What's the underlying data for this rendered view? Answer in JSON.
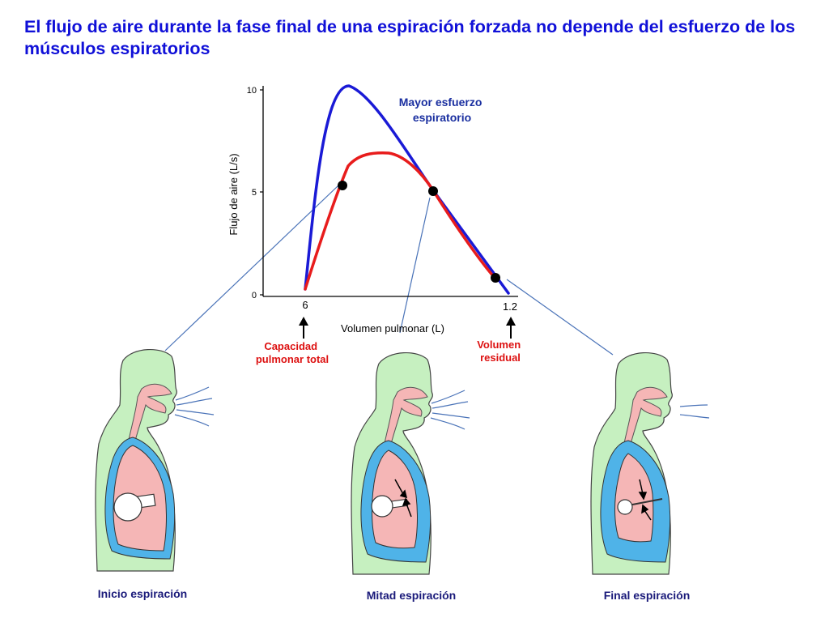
{
  "title": "El flujo de aire durante la fase final de una espiración forzada no depende del esfuerzo de los músculos espiratorios",
  "colors": {
    "title": "#1010d8",
    "high_effort_curve": "#1a1ad6",
    "low_effort_curve": "#e81c1c",
    "callout_text": "#dd1111",
    "curve_label": "#1a2fa0",
    "body_fill": "#c6f0c0",
    "lung_fill": "#f5b6b6",
    "pleura": "#4fb3e8",
    "connector": "#4a73b8"
  },
  "icons": [
    "torso-icon",
    "lung-icon",
    "alveolus-icon",
    "airflow-icon",
    "up-arrow-icon"
  ],
  "chart_data": {
    "type": "line",
    "title": "",
    "xlabel": "Volumen pulmonar (L)",
    "ylabel": "Flujo de aire (L/s)",
    "y_ticks": [
      "0",
      "5",
      "10"
    ],
    "ylim": [
      0,
      10
    ],
    "x_tick_labels": [
      "6",
      "1.2"
    ],
    "xlim": [
      6,
      1.2
    ],
    "series": [
      {
        "name": "Mayor esfuerzo espiratorio",
        "points": [
          [
            6.0,
            0.3
          ],
          [
            5.8,
            7.2
          ],
          [
            5.5,
            9.8
          ],
          [
            5.4,
            10.0
          ],
          [
            4.2,
            8.6
          ],
          [
            3.4,
            5.1
          ],
          [
            1.2,
            0.1
          ]
        ]
      },
      {
        "points": [
          [
            6.0,
            0.3
          ],
          [
            5.5,
            6.2
          ],
          [
            5.2,
            6.8
          ],
          [
            4.5,
            6.8
          ],
          [
            3.4,
            5.1
          ],
          [
            1.5,
            0.8
          ],
          [
            1.2,
            0.1
          ]
        ]
      }
    ],
    "markers": [
      [
        5.46,
        5.3
      ],
      [
        3.4,
        5.0
      ],
      [
        1.5,
        0.85
      ]
    ],
    "annotations": {
      "series_label": "Mayor esfuerzo espiratorio",
      "tlc_label": "Capacidad pulmonar total",
      "rv_label": "Volumen residual"
    }
  },
  "panels": [
    {
      "caption": "Inicio espiración"
    },
    {
      "caption": "Mitad espiración"
    },
    {
      "caption": "Final espiración"
    }
  ]
}
